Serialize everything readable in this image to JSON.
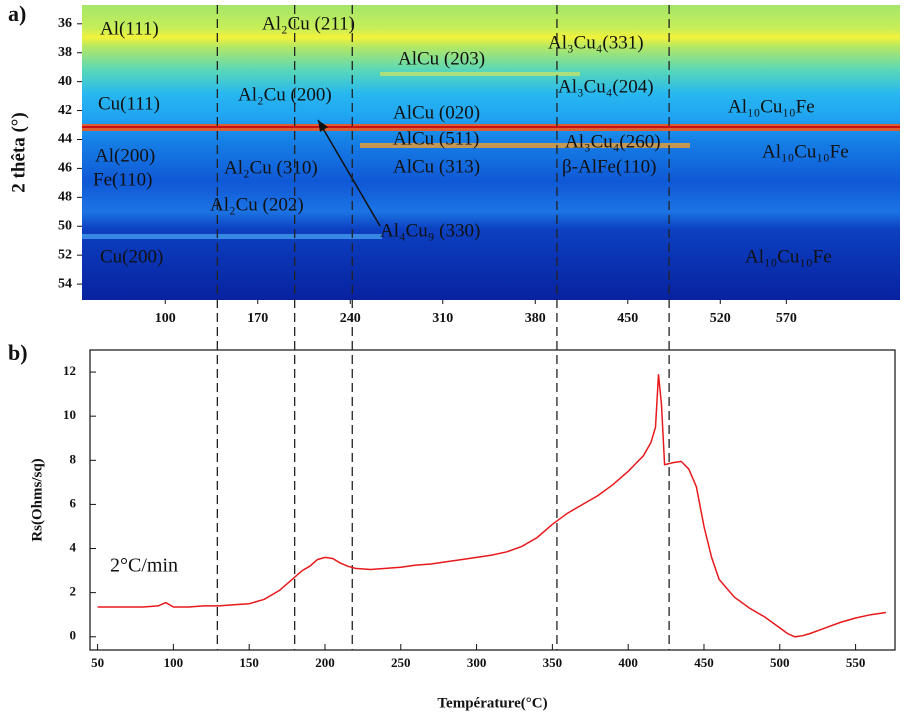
{
  "chart_data": [
    {
      "type": "heatmap",
      "panel_label": "a)",
      "ylabel": "2 thêta (°)",
      "xlim": [
        37,
        656
      ],
      "xticks": [
        100,
        170,
        240,
        310,
        380,
        450,
        520,
        570
      ],
      "ylim": [
        34.7,
        55.1
      ],
      "y_inverted": true,
      "yticks": [
        36,
        38,
        40,
        42,
        44,
        46,
        48,
        50,
        52,
        54
      ],
      "annotations": [
        "Al(111)",
        "Al₂Cu (211)",
        "AlCu (203)",
        "Al₃Cu₄(331)",
        "Cu(111)",
        "Al₂Cu (200)",
        "AlCu (020)",
        "Al₃Cu₄(204)",
        "Al₁₀Cu₁₀Fe",
        "AlCu (511)",
        "Al(200)",
        "Al₃Cu₄(260)",
        "Al₁₀Cu₁₀Fe",
        "Al₂Cu (310)",
        "AlCu (313)",
        "Fe(110)",
        "β-AlFe(110)",
        "Al₂Cu (202)",
        "Al₄Cu₉ (330)",
        "Cu(200)",
        "Al₁₀Cu₁₀Fe"
      ]
    },
    {
      "type": "line",
      "panel_label": "b)",
      "xlabel": "Température(°C)",
      "ylabel": "Rs(Ohms/sq)",
      "annotation": "2°C/min",
      "xlim": [
        45,
        576
      ],
      "xticks": [
        50,
        100,
        150,
        200,
        250,
        300,
        350,
        400,
        450,
        500,
        550
      ],
      "ylim": [
        -0.6,
        13
      ],
      "yticks": [
        0,
        2,
        4,
        6,
        8,
        10,
        12
      ],
      "color": "#e8191c",
      "vlines": [
        129,
        180,
        218,
        353,
        427
      ],
      "x": [
        50,
        60,
        70,
        80,
        90,
        95,
        100,
        110,
        120,
        130,
        140,
        150,
        160,
        170,
        180,
        185,
        190,
        195,
        200,
        205,
        210,
        215,
        220,
        230,
        240,
        250,
        260,
        270,
        280,
        290,
        300,
        310,
        320,
        330,
        340,
        350,
        360,
        370,
        380,
        390,
        400,
        410,
        415,
        418,
        420,
        422,
        424,
        430,
        435,
        440,
        445,
        450,
        455,
        460,
        470,
        480,
        490,
        500,
        505,
        510,
        515,
        520,
        530,
        540,
        550,
        560,
        565,
        570
      ],
      "values": [
        1.35,
        1.35,
        1.35,
        1.35,
        1.4,
        1.55,
        1.35,
        1.35,
        1.4,
        1.4,
        1.45,
        1.5,
        1.7,
        2.1,
        2.7,
        3.0,
        3.2,
        3.5,
        3.6,
        3.55,
        3.35,
        3.2,
        3.1,
        3.05,
        3.1,
        3.15,
        3.25,
        3.3,
        3.4,
        3.5,
        3.6,
        3.7,
        3.85,
        4.1,
        4.5,
        5.1,
        5.6,
        6.0,
        6.4,
        6.9,
        7.5,
        8.2,
        8.8,
        9.5,
        11.9,
        10.5,
        7.8,
        7.9,
        7.95,
        7.6,
        6.8,
        5.0,
        3.6,
        2.6,
        1.8,
        1.3,
        0.9,
        0.4,
        0.15,
        0.0,
        0.05,
        0.15,
        0.4,
        0.65,
        0.85,
        1.0,
        1.05,
        1.1
      ]
    }
  ]
}
